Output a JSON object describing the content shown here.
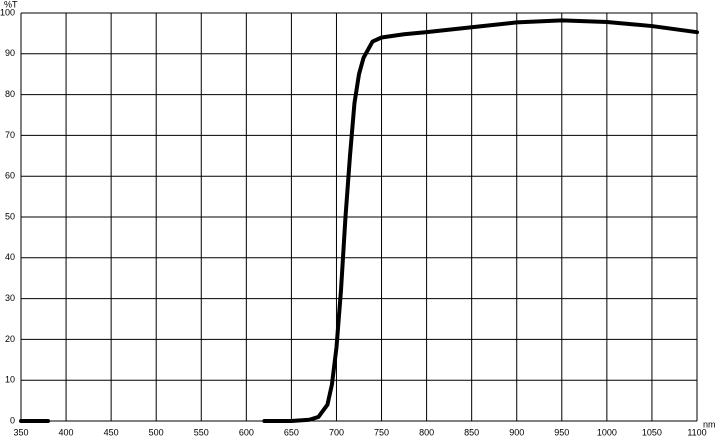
{
  "chart_data": {
    "type": "line",
    "y_label": "%T",
    "x_label": "nm",
    "x": [
      350,
      380,
      500,
      620,
      650,
      670,
      680,
      690,
      695,
      700,
      705,
      710,
      715,
      720,
      725,
      730,
      740,
      750,
      775,
      800,
      850,
      900,
      950,
      1000,
      1050,
      1100
    ],
    "values": [
      0,
      0,
      null,
      0,
      0,
      0.3,
      1,
      4,
      9,
      18,
      32,
      50,
      65,
      78,
      85,
      89,
      93,
      94,
      94.8,
      95.3,
      96.5,
      97.7,
      98.2,
      97.8,
      96.8,
      95.3
    ],
    "color": "#000000",
    "xlim": [
      350,
      1100
    ],
    "xticks": [
      350,
      400,
      450,
      500,
      550,
      600,
      650,
      700,
      750,
      800,
      850,
      900,
      950,
      1000,
      1050,
      1100
    ],
    "ylim": [
      0,
      100
    ],
    "yticks": [
      0,
      10,
      20,
      30,
      40,
      50,
      60,
      70,
      80,
      90,
      100
    ],
    "grid": true
  }
}
